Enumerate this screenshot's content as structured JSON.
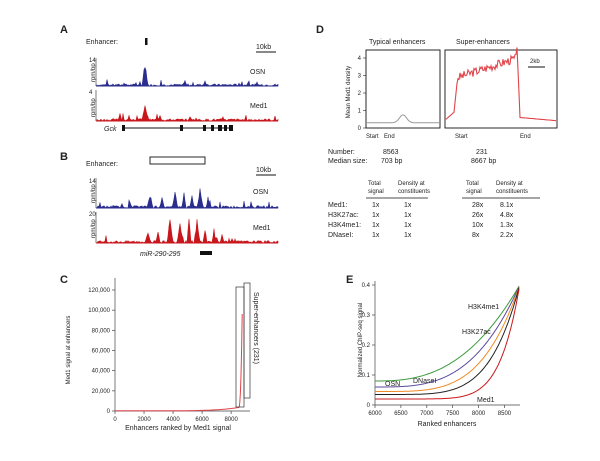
{
  "panels": {
    "A": {
      "label": "A",
      "enhancer_label": "Enhancer:",
      "scale_label": "10kb",
      "tracks": [
        {
          "max": "14",
          "unit": "rpm/bp",
          "name": "OSN",
          "color": "#2b2d8e"
        },
        {
          "max": "4",
          "unit": "rpm/bp",
          "name": "Med1",
          "color": "#c8171c"
        }
      ],
      "gene": "Gck"
    },
    "B": {
      "label": "B",
      "enhancer_label": "Enhancer:",
      "scale_label": "10kb",
      "tracks": [
        {
          "max": "14",
          "unit": "rpm/bp",
          "name": "OSN",
          "color": "#2b2d8e"
        },
        {
          "max": "20",
          "unit": "rpm/bp",
          "name": "Med1",
          "color": "#c8171c"
        }
      ],
      "gene": "miR-290-295"
    },
    "C": {
      "label": "C",
      "ylabel": "Med1 signal at enhancers",
      "xlabel": "Enhancers ranked by Med1 signal",
      "yticks": [
        "0",
        "20,000",
        "40,000",
        "60,000",
        "80,000",
        "100,000",
        "120,000"
      ],
      "xticks": [
        "0",
        "2000",
        "4000",
        "6000",
        "8000"
      ],
      "annotation": "Super-enhancers (231)",
      "line_color": "#e0444a"
    },
    "D": {
      "label": "D",
      "typical_title": "Typical enhancers",
      "super_title": "Super-enhancers",
      "ylabel": "Mean Med1 density",
      "yticks": [
        "0",
        "1",
        "2",
        "3",
        "4"
      ],
      "scale_label": "2kb",
      "typical_x": [
        "Start",
        "End"
      ],
      "super_x": [
        "Start",
        "End"
      ],
      "number_label": "Number:",
      "median_label": "Median size:",
      "typical_number": "8563",
      "typical_median": "703 bp",
      "super_number": "231",
      "super_median": "8667 bp",
      "table_headers": [
        "Total signal",
        "Density at constituents",
        "Total signal",
        "Density at constituents"
      ],
      "table_rows": [
        {
          "name": "Med1:",
          "cells": [
            "1x",
            "1x",
            "28x",
            "8.1x"
          ]
        },
        {
          "name": "H3K27ac:",
          "cells": [
            "1x",
            "1x",
            "26x",
            "4.8x"
          ]
        },
        {
          "name": "H3K4me1:",
          "cells": [
            "1x",
            "1x",
            "10x",
            "1.3x"
          ]
        },
        {
          "name": "DNaseI:",
          "cells": [
            "1x",
            "1x",
            "8x",
            "2.2x"
          ]
        }
      ]
    },
    "E": {
      "label": "E",
      "ylabel": "Normalized ChIP-seq signal",
      "xlabel": "Ranked enhancers",
      "yticks": [
        "0",
        "0.1",
        "0.2",
        "0.3",
        "0.4"
      ],
      "xticks": [
        "6000",
        "6500",
        "7000",
        "7500",
        "8000",
        "8500"
      ],
      "series": [
        {
          "name": "H3K4me1",
          "color": "#3a9a3a"
        },
        {
          "name": "H3K27ac",
          "color": "#5a4a9e"
        },
        {
          "name": "OSN",
          "color": "#f08a24"
        },
        {
          "name": "DNaseI",
          "color": "#222222"
        },
        {
          "name": "Med1",
          "color": "#c8171c"
        }
      ]
    }
  }
}
